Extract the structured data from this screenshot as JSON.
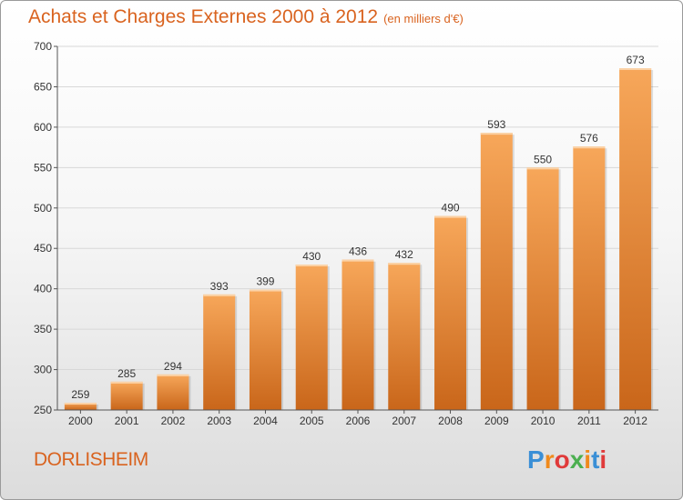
{
  "header": {
    "title": "Achats et Charges Externes 2000 à 2012",
    "subtitle": "(en milliers d'€)"
  },
  "footer": {
    "town": "DORLISHEIM",
    "logo_letters": [
      "P",
      "r",
      "o",
      "x",
      "i",
      "t",
      "i"
    ],
    "logo_colors": [
      "#3a8fd6",
      "#f08a1c",
      "#e03a3a",
      "#4caf50",
      "#f08a1c",
      "#3a8fd6",
      "#e03a3a"
    ]
  },
  "colors": {
    "title": "#d9631f",
    "bar_top": "#f7a75a",
    "bar_bottom": "#c9661a"
  },
  "chart_data": {
    "type": "bar",
    "title": "Achats et Charges Externes 2000 à 2012",
    "categories": [
      "2000",
      "2001",
      "2002",
      "2003",
      "2004",
      "2005",
      "2006",
      "2007",
      "2008",
      "2009",
      "2010",
      "2011",
      "2012"
    ],
    "values": [
      259,
      285,
      294,
      393,
      399,
      430,
      436,
      432,
      490,
      593,
      550,
      576,
      673
    ],
    "ylim": [
      250,
      700
    ],
    "yticks": [
      250,
      300,
      350,
      400,
      450,
      500,
      550,
      600,
      650,
      700
    ],
    "grid": true,
    "legend": "none",
    "data_labels": true
  }
}
